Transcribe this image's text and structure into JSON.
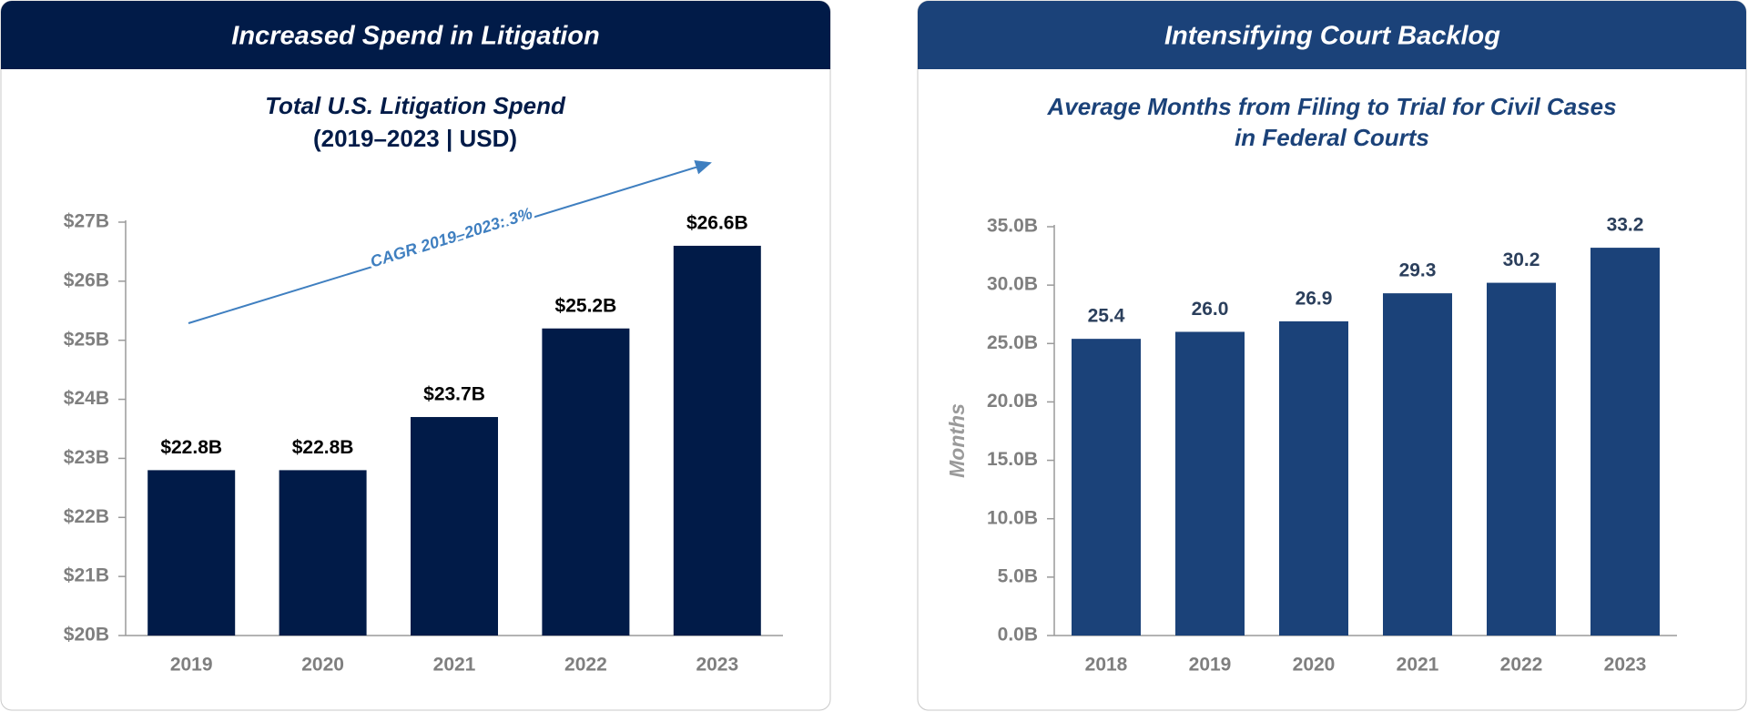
{
  "chart_data": [
    {
      "type": "bar",
      "panel_title": "Increased Spend in Litigation",
      "title": "Total U.S. Litigation Spend",
      "subtitle": "(2019–2023 | USD)",
      "categories": [
        "2019",
        "2020",
        "2021",
        "2022",
        "2023"
      ],
      "values": [
        22.8,
        22.8,
        23.7,
        25.2,
        26.6
      ],
      "value_labels": [
        "$22.8B",
        "$22.8B",
        "$23.7B",
        "$25.2B",
        "$26.6B"
      ],
      "color": "#011b48",
      "header_color": "#011b48",
      "ylim": [
        20,
        27
      ],
      "yticks": [
        {
          "value": 20,
          "label": "$20B"
        },
        {
          "value": 21,
          "label": "$21B"
        },
        {
          "value": 22,
          "label": "$22B"
        },
        {
          "value": 23,
          "label": "$23B"
        },
        {
          "value": 24,
          "label": "$24B"
        },
        {
          "value": 25,
          "label": "$25B"
        },
        {
          "value": 26,
          "label": "$26B"
        },
        {
          "value": 27,
          "label": "$27B"
        }
      ],
      "annotation": "CAGR 2019–2023: 3%"
    },
    {
      "type": "bar",
      "panel_title": "Intensifying Court Backlog",
      "title": [
        "Average Months from Filing to Trial for Civil Cases",
        "in Federal Courts"
      ],
      "ylabel": "Months",
      "categories": [
        "2018",
        "2019",
        "2020",
        "2021",
        "2022",
        "2023"
      ],
      "values": [
        25.4,
        26.0,
        26.9,
        29.3,
        30.2,
        33.2
      ],
      "value_labels": [
        "25.4",
        "26.0",
        "26.9",
        "29.3",
        "30.2",
        "33.2"
      ],
      "color": "#1b4279",
      "header_color": "#1b4279",
      "ylim": [
        0,
        35
      ],
      "yticks": [
        {
          "value": 0,
          "label": "0.0B"
        },
        {
          "value": 5,
          "label": "5.0B"
        },
        {
          "value": 10,
          "label": "10.0B"
        },
        {
          "value": 15,
          "label": "15.0B"
        },
        {
          "value": 20,
          "label": "20.0B"
        },
        {
          "value": 25,
          "label": "25.0B"
        },
        {
          "value": 30,
          "label": "30.0B"
        },
        {
          "value": 35,
          "label": "35.0B"
        }
      ]
    }
  ]
}
